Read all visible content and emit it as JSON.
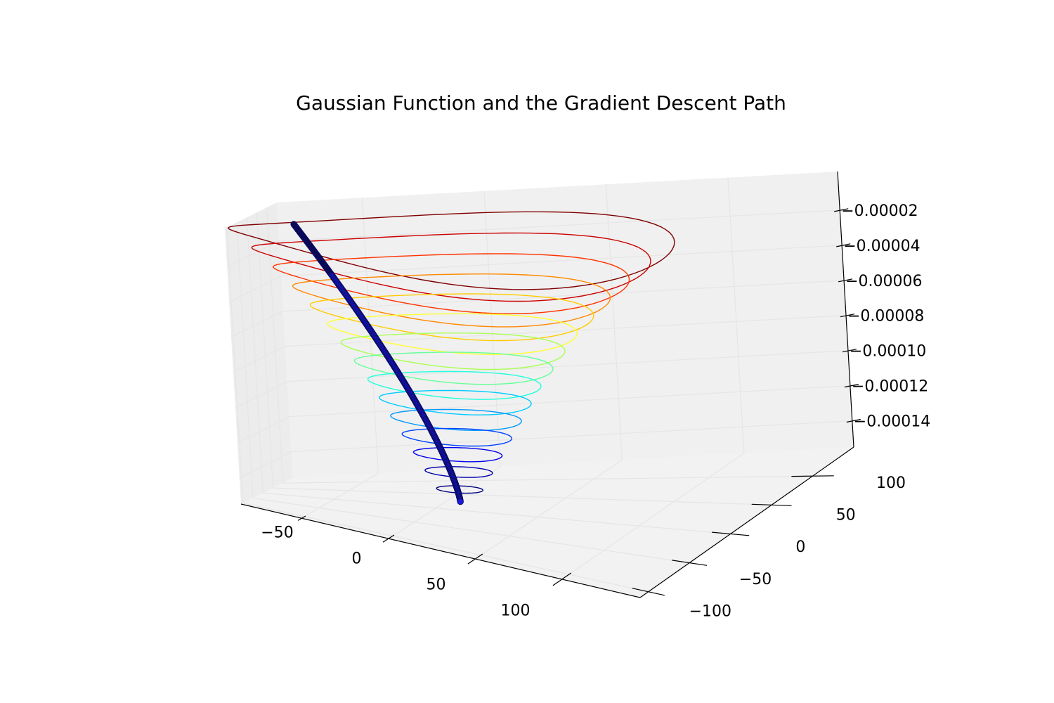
{
  "chart_data": {
    "type": "3d-contour-with-path",
    "title": "Gaussian Function and the Gradient Descent Path",
    "xlabel": "",
    "ylabel": "",
    "zlabel": "",
    "x_ticks": [
      "−50",
      "0",
      "50",
      "100"
    ],
    "y_ticks": [
      "−100",
      "−50",
      "0",
      "50",
      "100"
    ],
    "z_ticks": [
      "−0.00002",
      "−0.00004",
      "−0.00006",
      "−0.00008",
      "−0.00010",
      "−0.00012",
      "−0.00014"
    ],
    "x_tick_values": [
      -50,
      0,
      50,
      100
    ],
    "y_tick_values": [
      -100,
      -50,
      0,
      50,
      100
    ],
    "z_tick_values": [
      -2e-05,
      -4e-05,
      -6e-05,
      -8e-05,
      -0.0001,
      -0.00012,
      -0.00014
    ],
    "xlim": [
      -85,
      145
    ],
    "ylim": [
      -110,
      150
    ],
    "zlim": [
      -0.000155,
      2e-06
    ],
    "contour_center": [
      10,
      10
    ],
    "contours": [
      {
        "level": -5e-06,
        "radius": 105,
        "color": "#800000"
      },
      {
        "level": -1.5e-05,
        "radius": 94,
        "color": "#cc0000"
      },
      {
        "level": -2.5e-05,
        "radius": 84,
        "color": "#ff3300"
      },
      {
        "level": -3.5e-05,
        "radius": 75,
        "color": "#ff8800"
      },
      {
        "level": -4.5e-05,
        "radius": 67,
        "color": "#ffcc00"
      },
      {
        "level": -5.5e-05,
        "radius": 59,
        "color": "#ffff33"
      },
      {
        "level": -6.5e-05,
        "radius": 53,
        "color": "#aaff55"
      },
      {
        "level": -7.5e-05,
        "radius": 47,
        "color": "#66ff99"
      },
      {
        "level": -8.5e-05,
        "radius": 41,
        "color": "#22ffdd"
      },
      {
        "level": -9.5e-05,
        "radius": 36,
        "color": "#00ccff"
      },
      {
        "level": -0.000105,
        "radius": 31,
        "color": "#0099ff"
      },
      {
        "level": -0.000115,
        "radius": 26,
        "color": "#0044ff"
      },
      {
        "level": -0.000125,
        "radius": 21,
        "color": "#0000ee"
      },
      {
        "level": -0.000135,
        "radius": 16,
        "color": "#0000b0"
      },
      {
        "level": -0.000145,
        "radius": 11,
        "color": "#000080"
      }
    ],
    "descent_path": {
      "color": "#1a1adb",
      "edge_color": "#0a0a60",
      "start": [
        -62,
        0,
        5e-07
      ],
      "end": [
        10,
        10,
        -0.000152
      ],
      "num_points": 320
    },
    "grid": true,
    "legend": "none"
  }
}
